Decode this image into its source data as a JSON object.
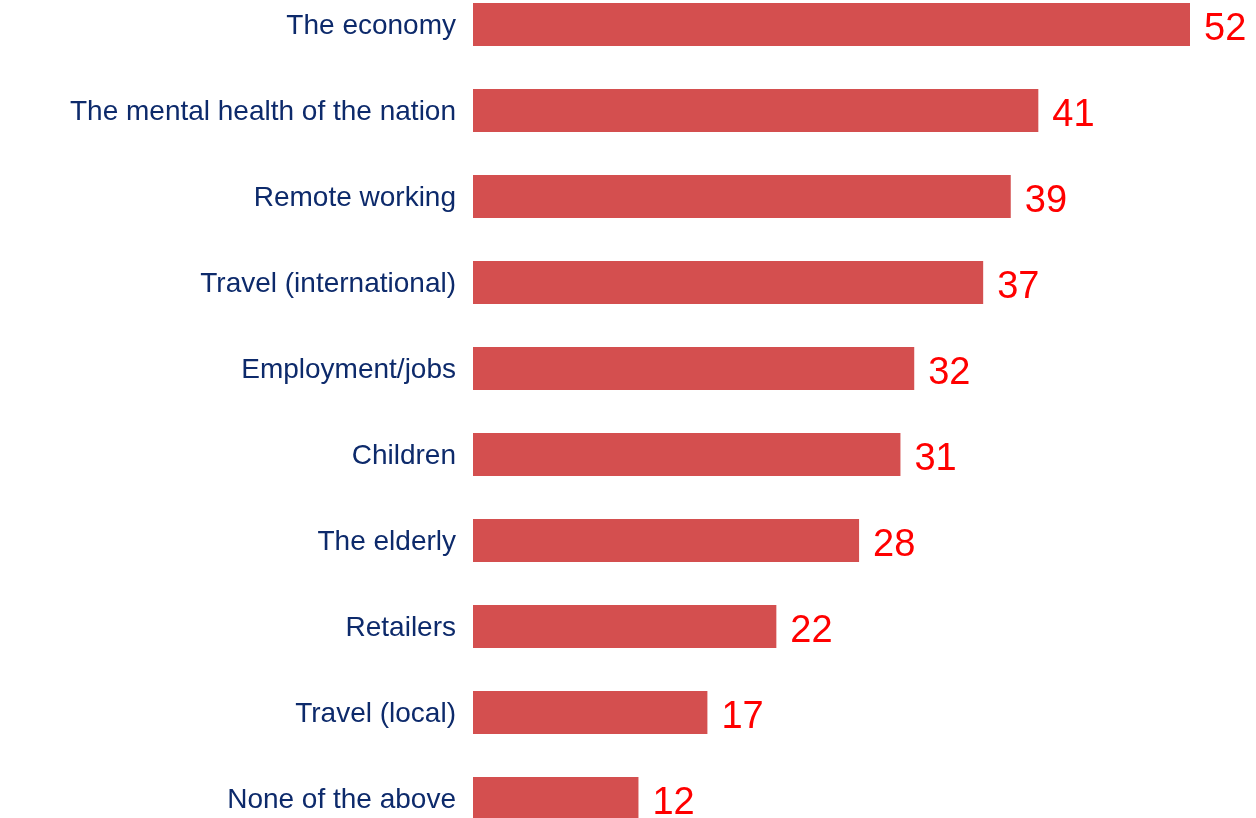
{
  "chart_data": {
    "type": "bar",
    "orientation": "horizontal",
    "categories": [
      "The economy",
      "The mental health of the nation",
      "Remote working",
      "Travel (international)",
      "Employment/jobs",
      "Children",
      "The elderly",
      "Retailers",
      "Travel (local)",
      "None of the above"
    ],
    "values": [
      52,
      41,
      39,
      37,
      32,
      31,
      28,
      22,
      17,
      12
    ],
    "color": "#d44f4f",
    "data_labels": true
  }
}
